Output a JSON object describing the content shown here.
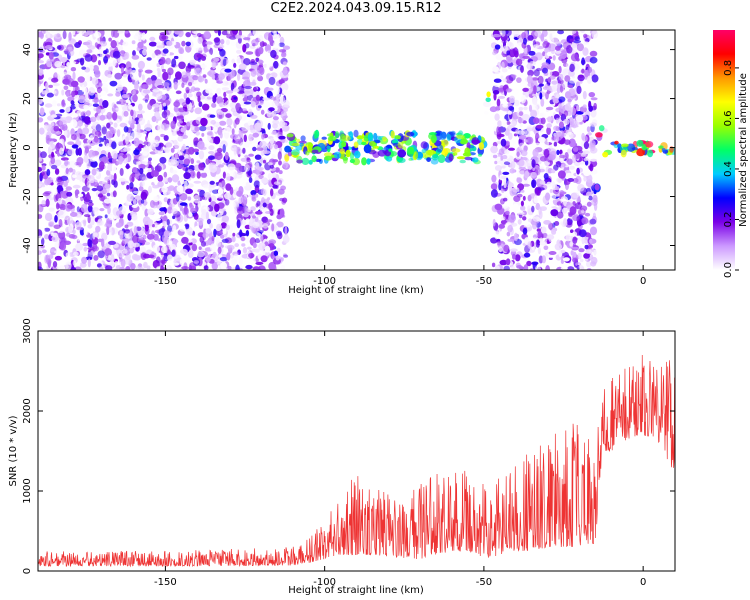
{
  "title": "C2E2.2024.043.09.15.R12",
  "chart_data": [
    {
      "type": "heatmap",
      "xlabel": "Height of straight line (km)",
      "ylabel": "Frequency (Hz)",
      "xlim": [
        -190,
        10
      ],
      "ylim": [
        -50,
        48
      ],
      "xticks": [
        -150,
        -100,
        -50,
        0
      ],
      "yticks": [
        -40,
        -20,
        0,
        20,
        40
      ],
      "colorbar": {
        "label": "Normalized spectral amplitude",
        "range": [
          0,
          0.95
        ],
        "ticks": [
          0.0,
          0.2,
          0.4,
          0.6,
          0.8
        ],
        "colors": [
          "#ffffff",
          "#cc99ff",
          "#7a00e6",
          "#0000ff",
          "#00ccff",
          "#00ff66",
          "#99ff00",
          "#ffff00",
          "#ff9900",
          "#ff0000",
          "#ff0066"
        ]
      },
      "features": [
        {
          "name": "broadband noise",
          "x": [
            -190,
            -112
          ],
          "y": [
            -50,
            48
          ],
          "level": 0.12
        },
        {
          "name": "signal band",
          "x": [
            -112,
            -50
          ],
          "y": [
            -6,
            6
          ],
          "level": 0.5
        },
        {
          "name": "spike",
          "x": [
            -49.5,
            -48.5
          ],
          "y": [
            10,
            22
          ],
          "level": 0.35
        },
        {
          "name": "broadband noise",
          "x": [
            -47,
            -15
          ],
          "y": [
            -50,
            48
          ],
          "level": 0.12
        },
        {
          "name": "burst",
          "x": [
            -16,
            -14
          ],
          "y": [
            -25,
            -15
          ],
          "level": 0.3
        },
        {
          "name": "spike",
          "x": [
            -14,
            -12
          ],
          "y": [
            2,
            8
          ],
          "level": 0.45
        },
        {
          "name": "signal band",
          "x": [
            -12,
            10
          ],
          "y": [
            -3,
            2
          ],
          "level": 0.75
        }
      ]
    },
    {
      "type": "line",
      "xlabel": "Height of straight line (km)",
      "ylabel": "SNR (10 * v/v)",
      "xlim": [
        -190,
        10
      ],
      "ylim": [
        0,
        3000
      ],
      "xticks": [
        -150,
        -100,
        -50,
        0
      ],
      "yticks": [
        0,
        1000,
        2000,
        3000
      ],
      "color": "#ee3333",
      "envelope": {
        "x": [
          -190,
          -150,
          -110,
          -105,
          -100,
          -95,
          -90,
          -85,
          -80,
          -75,
          -70,
          -65,
          -60,
          -55,
          -50,
          -45,
          -40,
          -35,
          -30,
          -25,
          -20,
          -15,
          -13,
          -10,
          -5,
          0,
          5,
          10
        ],
        "low": [
          60,
          60,
          70,
          100,
          150,
          200,
          200,
          200,
          180,
          150,
          150,
          200,
          250,
          250,
          150,
          200,
          250,
          250,
          300,
          300,
          300,
          350,
          1400,
          1500,
          1650,
          1700,
          1600,
          1200
        ],
        "high": [
          250,
          250,
          300,
          450,
          650,
          1000,
          1300,
          1100,
          1000,
          900,
          1100,
          1300,
          1300,
          1250,
          1100,
          1300,
          1400,
          1500,
          1700,
          1800,
          1900,
          1700,
          2300,
          2400,
          2800,
          2700,
          2600,
          2700
        ]
      }
    }
  ]
}
